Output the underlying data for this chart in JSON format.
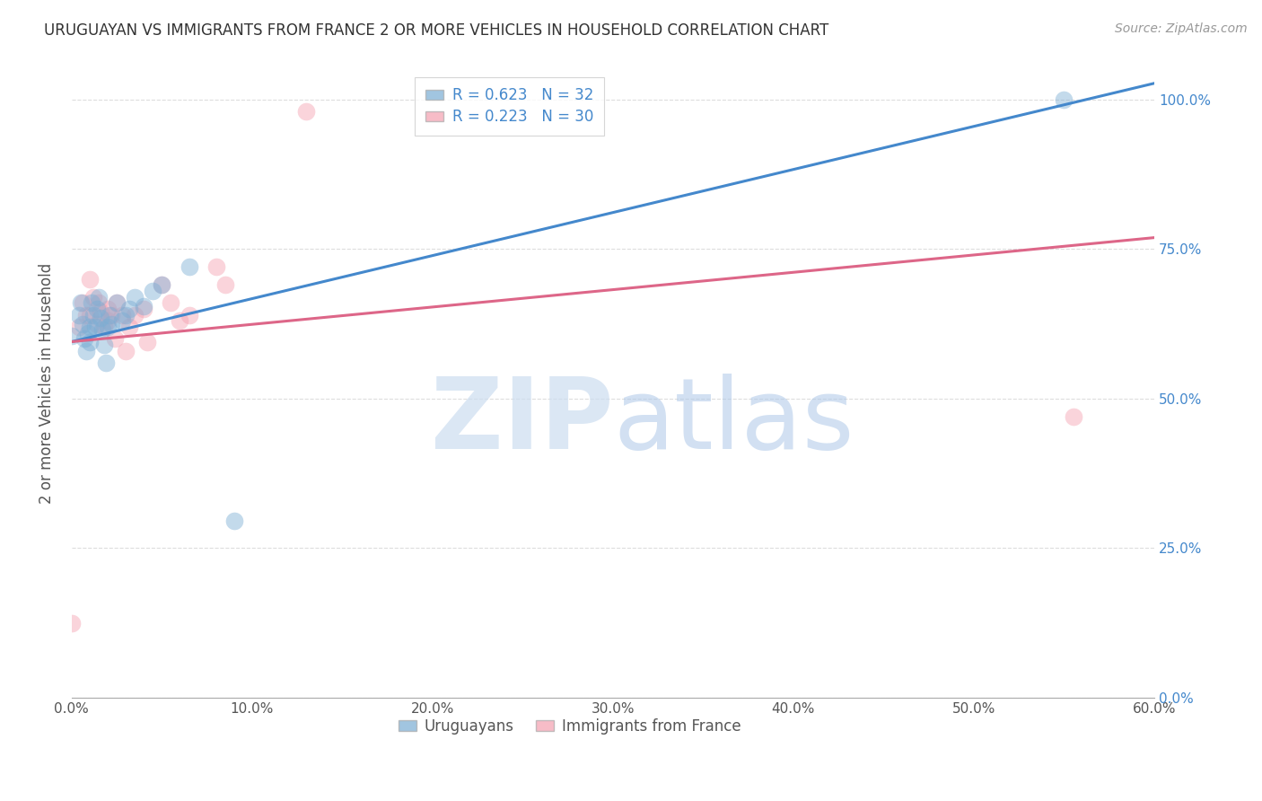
{
  "title": "URUGUAYAN VS IMMIGRANTS FROM FRANCE 2 OR MORE VEHICLES IN HOUSEHOLD CORRELATION CHART",
  "source": "Source: ZipAtlas.com",
  "ylabel_label": "2 or more Vehicles in Household",
  "xlim": [
    0.0,
    0.6
  ],
  "ylim": [
    0.0,
    1.05
  ],
  "xtick_vals": [
    0.0,
    0.1,
    0.2,
    0.3,
    0.4,
    0.5,
    0.6
  ],
  "ytick_vals": [
    0.0,
    0.25,
    0.5,
    0.75,
    1.0
  ],
  "legend_entries": [
    {
      "label": "R = 0.623   N = 32",
      "color": "#7aadd4"
    },
    {
      "label": "R = 0.223   N = 30",
      "color": "#f4a0b0"
    }
  ],
  "uruguayan_x": [
    0.0,
    0.004,
    0.005,
    0.006,
    0.007,
    0.008,
    0.009,
    0.01,
    0.01,
    0.011,
    0.012,
    0.013,
    0.014,
    0.015,
    0.016,
    0.017,
    0.018,
    0.019,
    0.02,
    0.021,
    0.022,
    0.025,
    0.028,
    0.03,
    0.032,
    0.035,
    0.04,
    0.045,
    0.05,
    0.065,
    0.09,
    0.55
  ],
  "uruguayan_y": [
    0.605,
    0.64,
    0.66,
    0.625,
    0.6,
    0.58,
    0.61,
    0.62,
    0.595,
    0.66,
    0.64,
    0.62,
    0.65,
    0.67,
    0.635,
    0.615,
    0.59,
    0.56,
    0.62,
    0.64,
    0.625,
    0.66,
    0.63,
    0.64,
    0.65,
    0.67,
    0.655,
    0.68,
    0.69,
    0.72,
    0.295,
    1.0
  ],
  "france_x": [
    0.0,
    0.004,
    0.006,
    0.008,
    0.01,
    0.01,
    0.012,
    0.014,
    0.015,
    0.016,
    0.018,
    0.02,
    0.02,
    0.022,
    0.024,
    0.025,
    0.028,
    0.03,
    0.032,
    0.035,
    0.04,
    0.042,
    0.05,
    0.055,
    0.06,
    0.065,
    0.08,
    0.085,
    0.13,
    0.555
  ],
  "france_y": [
    0.125,
    0.62,
    0.66,
    0.64,
    0.7,
    0.64,
    0.67,
    0.625,
    0.66,
    0.645,
    0.62,
    0.65,
    0.63,
    0.64,
    0.6,
    0.66,
    0.64,
    0.58,
    0.62,
    0.64,
    0.65,
    0.595,
    0.69,
    0.66,
    0.63,
    0.64,
    0.72,
    0.69,
    0.98,
    0.47
  ],
  "uruguayan_color": "#7aadd4",
  "france_color": "#f4a0b0",
  "uruguay_line_color": "#4488cc",
  "france_line_color": "#dd6688",
  "uruguay_intercept": 0.595,
  "uruguay_slope": 0.72,
  "france_intercept": 0.595,
  "france_slope": 0.29,
  "watermark_zip": "ZIP",
  "watermark_atlas": "atlas",
  "background_color": "#ffffff",
  "grid_color": "#dddddd",
  "bottom_legend": [
    "Uruguayans",
    "Immigrants from France"
  ]
}
